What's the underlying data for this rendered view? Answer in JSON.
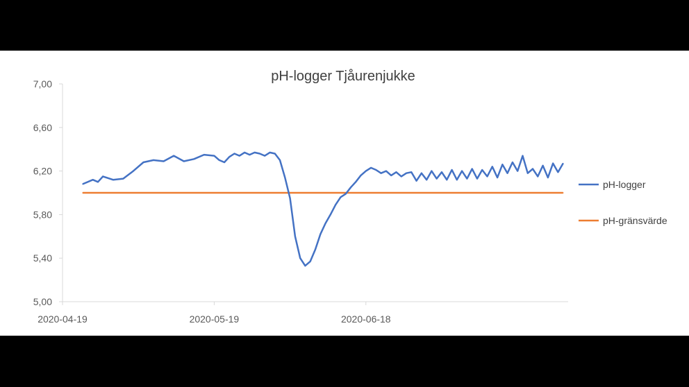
{
  "chart_data": {
    "type": "line",
    "title": "pH-logger Tjåurenjukke",
    "xlabel": "",
    "ylabel": "",
    "x_ticks": [
      "2020-04-19",
      "2020-05-19",
      "2020-06-18"
    ],
    "x_range": [
      "2020-04-19",
      "2020-07-28"
    ],
    "y_ticks": [
      "5,00",
      "5,40",
      "5,80",
      "6,20",
      "6,60",
      "7,00"
    ],
    "ylim": [
      5.0,
      7.0
    ],
    "grid": false,
    "legend_position": "right",
    "series": [
      {
        "name": "pH-logger",
        "color": "#4472C4",
        "x": [
          "2020-04-23",
          "2020-04-25",
          "2020-04-26",
          "2020-04-27",
          "2020-04-29",
          "2020-05-01",
          "2020-05-03",
          "2020-05-05",
          "2020-05-07",
          "2020-05-09",
          "2020-05-11",
          "2020-05-13",
          "2020-05-15",
          "2020-05-17",
          "2020-05-19",
          "2020-05-20",
          "2020-05-21",
          "2020-05-22",
          "2020-05-23",
          "2020-05-24",
          "2020-05-25",
          "2020-05-26",
          "2020-05-27",
          "2020-05-28",
          "2020-05-29",
          "2020-05-30",
          "2020-05-31",
          "2020-06-01",
          "2020-06-02",
          "2020-06-03",
          "2020-06-04",
          "2020-06-05",
          "2020-06-06",
          "2020-06-07",
          "2020-06-08",
          "2020-06-09",
          "2020-06-10",
          "2020-06-11",
          "2020-06-12",
          "2020-06-13",
          "2020-06-14",
          "2020-06-15",
          "2020-06-16",
          "2020-06-17",
          "2020-06-18",
          "2020-06-19",
          "2020-06-20",
          "2020-06-21",
          "2020-06-22",
          "2020-06-23",
          "2020-06-24",
          "2020-06-25",
          "2020-06-26",
          "2020-06-27",
          "2020-06-28",
          "2020-06-29",
          "2020-06-30",
          "2020-07-01",
          "2020-07-02",
          "2020-07-03",
          "2020-07-04",
          "2020-07-05",
          "2020-07-06",
          "2020-07-07",
          "2020-07-08",
          "2020-07-09",
          "2020-07-10",
          "2020-07-11",
          "2020-07-12",
          "2020-07-13",
          "2020-07-14",
          "2020-07-15",
          "2020-07-16",
          "2020-07-17",
          "2020-07-18",
          "2020-07-19",
          "2020-07-20",
          "2020-07-21",
          "2020-07-22",
          "2020-07-23",
          "2020-07-24",
          "2020-07-25",
          "2020-07-26",
          "2020-07-27"
        ],
        "values": [
          6.08,
          6.12,
          6.1,
          6.15,
          6.12,
          6.13,
          6.2,
          6.28,
          6.3,
          6.29,
          6.34,
          6.29,
          6.31,
          6.35,
          6.34,
          6.3,
          6.28,
          6.33,
          6.36,
          6.34,
          6.37,
          6.35,
          6.37,
          6.36,
          6.34,
          6.37,
          6.36,
          6.3,
          6.14,
          5.95,
          5.6,
          5.4,
          5.33,
          5.37,
          5.48,
          5.62,
          5.72,
          5.8,
          5.89,
          5.96,
          5.99,
          6.05,
          6.1,
          6.16,
          6.2,
          6.23,
          6.21,
          6.18,
          6.2,
          6.16,
          6.19,
          6.15,
          6.18,
          6.19,
          6.11,
          6.18,
          6.12,
          6.2,
          6.13,
          6.19,
          6.12,
          6.21,
          6.12,
          6.2,
          6.13,
          6.22,
          6.13,
          6.21,
          6.15,
          6.24,
          6.14,
          6.26,
          6.18,
          6.28,
          6.2,
          6.34,
          6.18,
          6.22,
          6.15,
          6.25,
          6.14,
          6.27,
          6.19,
          6.27
        ]
      },
      {
        "name": "pH-gränsvärde",
        "color": "#ED7D31",
        "x": [
          "2020-04-23",
          "2020-07-27"
        ],
        "values": [
          6.0,
          6.0
        ]
      }
    ]
  }
}
